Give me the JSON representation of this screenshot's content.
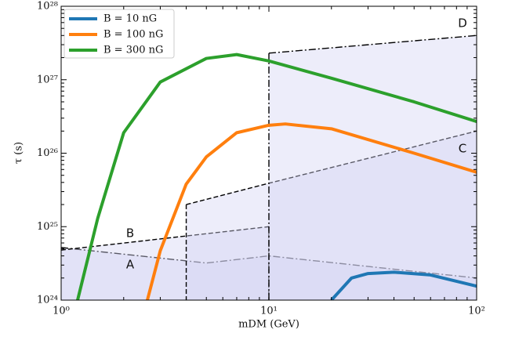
{
  "chart_data": {
    "type": "line",
    "xlabel": "mDM (GeV)",
    "ylabel": "τ (s)",
    "xscale": "log",
    "yscale": "log",
    "xlim": [
      1,
      100
    ],
    "ylim": [
      1e+24,
      1e+28
    ],
    "xticks": [
      {
        "value": 1,
        "label": "10⁰"
      },
      {
        "value": 10,
        "label": "10¹"
      },
      {
        "value": 100,
        "label": "10²"
      }
    ],
    "yticks": [
      {
        "value": 1e+24,
        "label": "10²⁴"
      },
      {
        "value": 1e+25,
        "label": "10²⁵"
      },
      {
        "value": 1e+26,
        "label": "10²⁶"
      },
      {
        "value": 1e+27,
        "label": "10²⁷"
      },
      {
        "value": 1e+28,
        "label": "10²⁸"
      }
    ],
    "legend": "upper left",
    "series": [
      {
        "name": "B = 10 nG",
        "color": "#1f77b4",
        "x": [
          20,
          25,
          30,
          40,
          60,
          100
        ],
        "values": [
          1e+24,
          2e+24,
          2.3e+24,
          2.4e+24,
          2.2e+24,
          1.55e+24
        ]
      },
      {
        "name": "B = 100 nG",
        "color": "#ff7f0e",
        "x": [
          2.6,
          3,
          4,
          5,
          7,
          10,
          12,
          20,
          50,
          100
        ],
        "values": [
          1e+24,
          4.7e+24,
          3.8e+25,
          8.9e+25,
          1.9e+26,
          2.4e+26,
          2.5e+26,
          2.15e+26,
          1e+26,
          5.5e+25
        ]
      },
      {
        "name": "B = 300 nG",
        "color": "#2ca02c",
        "x": [
          1.2,
          1.5,
          2,
          3,
          5,
          7,
          10,
          20,
          50,
          100
        ],
        "values": [
          1e+24,
          1.3e+25,
          1.9e+26,
          9.3e+26,
          1.95e+27,
          2.2e+27,
          1.8e+27,
          1.05e+27,
          5e+26,
          2.7e+26
        ]
      }
    ],
    "regions": [
      {
        "name": "A",
        "style": "dash-dot",
        "x": [
          1,
          5,
          10,
          100
        ],
        "values": [
          5.2e+24,
          3.2e+24,
          4e+24,
          2e+24
        ]
      },
      {
        "name": "B",
        "style": "dashed",
        "x": [
          1,
          10
        ],
        "values": [
          4.8e+24,
          1e+25
        ]
      },
      {
        "name": "C",
        "style": "dashed",
        "x": [
          4,
          10,
          100
        ],
        "values": [
          2e+25,
          3.9e+25,
          2e+26
        ]
      },
      {
        "name": "D",
        "style": "dash-dot",
        "x": [
          10,
          100
        ],
        "values": [
          2.3e+27,
          4e+27
        ]
      }
    ]
  }
}
